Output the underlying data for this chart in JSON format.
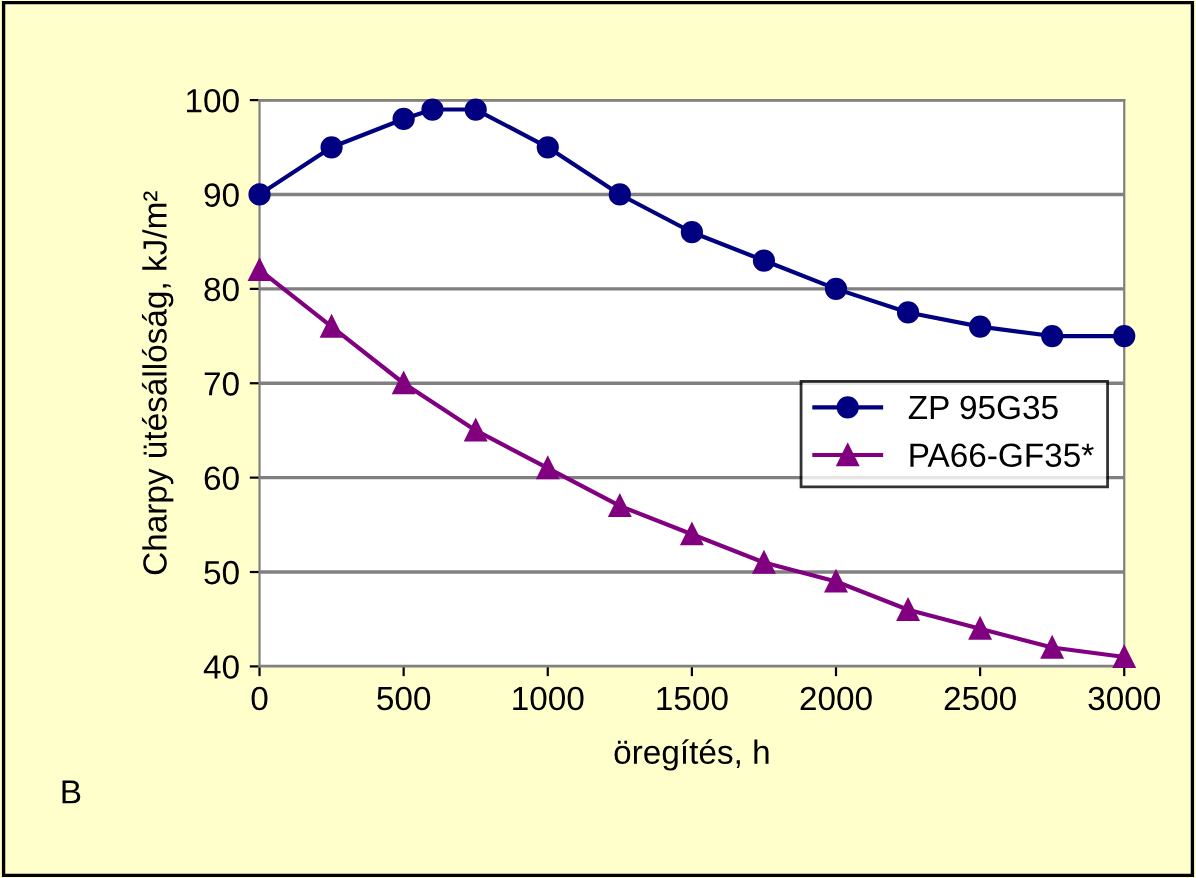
{
  "chart_data": {
    "type": "line",
    "xlabel": "öregítés, h",
    "ylabel": "Charpy ütésállóság, kJ/m²",
    "series": [
      {
        "name": "ZP 95G35",
        "color": "#000080",
        "marker": "circle",
        "x": [
          0,
          250,
          500,
          600,
          750,
          1000,
          1250,
          1500,
          1750,
          2000,
          2250,
          2500,
          2750,
          3000
        ],
        "values": [
          90,
          95,
          98,
          99,
          99,
          95,
          90,
          86,
          83,
          80,
          77.5,
          76,
          75,
          75
        ]
      },
      {
        "name": "PA66-GF35*",
        "color": "#800080",
        "marker": "triangle",
        "x": [
          0,
          250,
          500,
          750,
          1000,
          1250,
          1500,
          1750,
          2000,
          2250,
          2500,
          2750,
          3000
        ],
        "values": [
          82,
          76,
          70,
          65,
          61,
          57,
          54,
          51,
          49,
          46,
          44,
          42,
          41
        ]
      }
    ],
    "xlim": [
      0,
      3000
    ],
    "xticks": [
      0,
      500,
      1000,
      1500,
      2000,
      2500,
      3000
    ],
    "ylim": [
      40,
      100
    ],
    "yticks": [
      40,
      50,
      60,
      70,
      80,
      90,
      100
    ],
    "grid": "y",
    "legend": "center right",
    "annotations": [
      "B"
    ]
  }
}
